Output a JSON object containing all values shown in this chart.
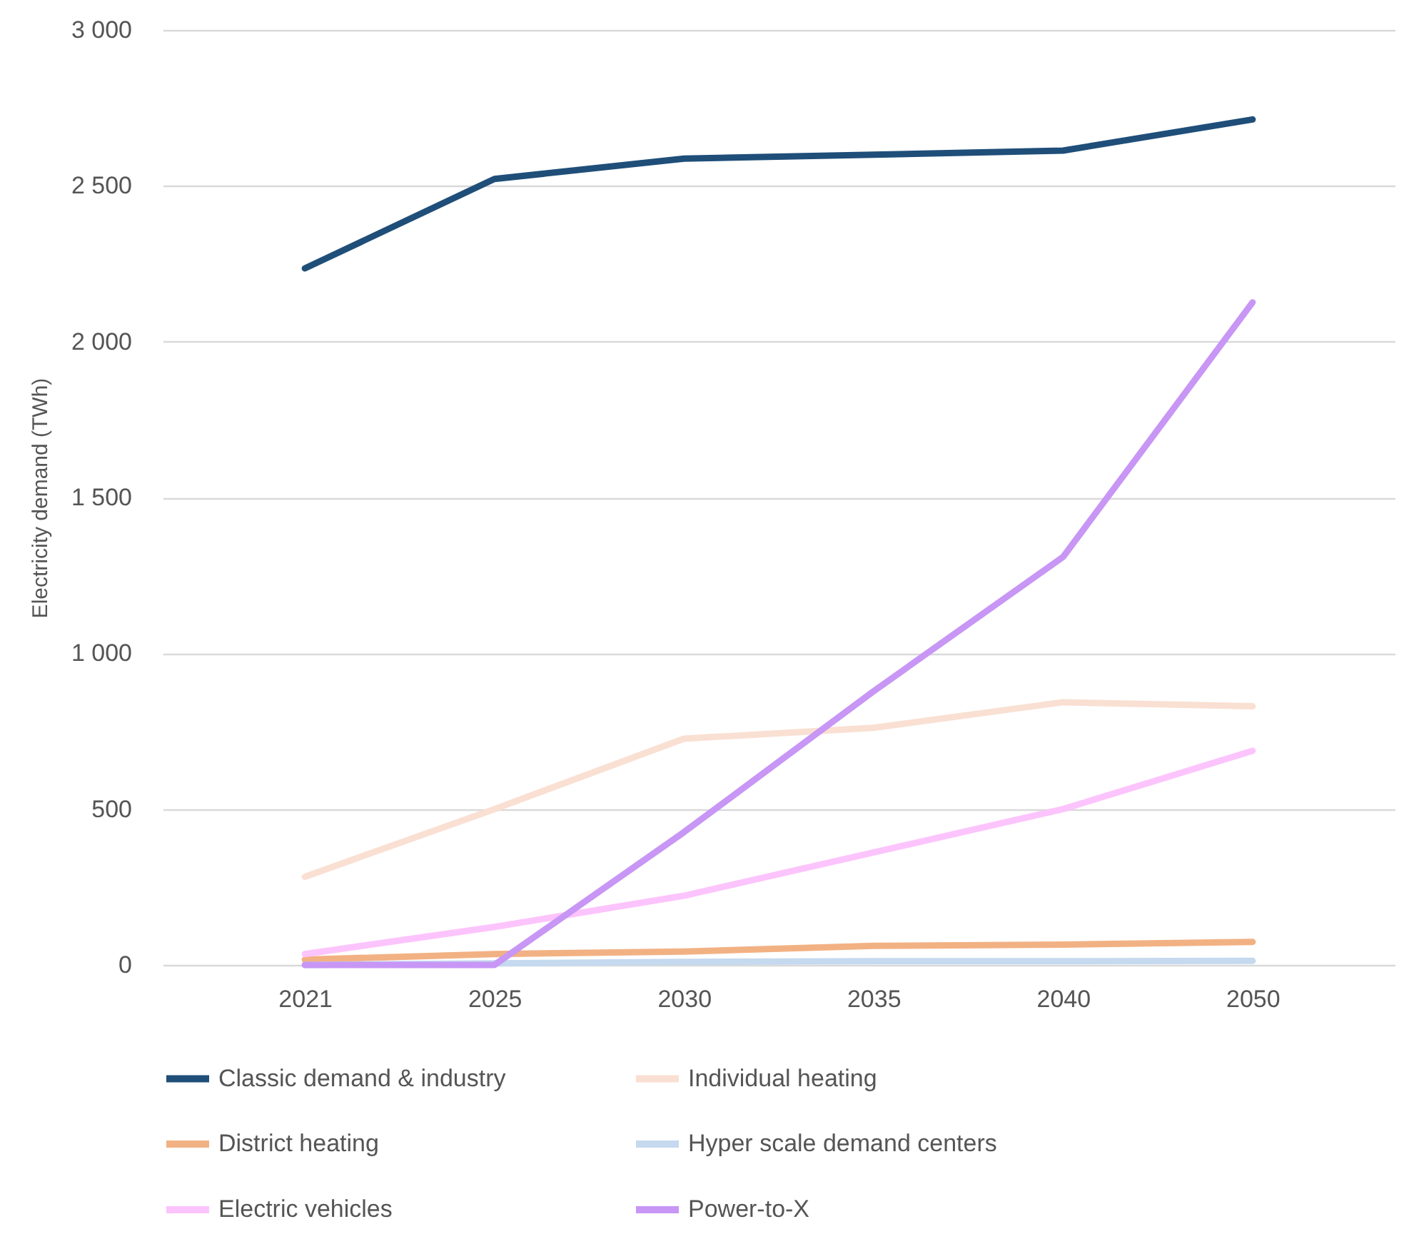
{
  "chart_data": {
    "type": "line",
    "ylabel": "Electricity demand (TWh)",
    "categories": [
      "2021",
      "2025",
      "2030",
      "2035",
      "2040",
      "2050"
    ],
    "series": [
      {
        "name": "Classic demand & industry",
        "color": "#1f4e79",
        "values": [
          2235,
          2522,
          2587,
          2600,
          2613,
          2713
        ]
      },
      {
        "name": "Individual heating",
        "color": "#f9e0d2",
        "values": [
          283,
          500,
          726,
          761,
          843,
          830
        ]
      },
      {
        "name": "District heating",
        "color": "#f2b183",
        "values": [
          17,
          35,
          43,
          61,
          65,
          74
        ]
      },
      {
        "name": "Hyper scale demand centers",
        "color": "#c5d9ef",
        "values": [
          0,
          5,
          10,
          12,
          12,
          13
        ]
      },
      {
        "name": "Electric vehicles",
        "color": "#fcc4fc",
        "values": [
          35,
          122,
          222,
          361,
          500,
          687
        ]
      },
      {
        "name": "Power-to-X",
        "color": "#c896f5",
        "values": [
          0,
          0,
          426,
          878,
          1309,
          2126
        ]
      }
    ],
    "ylim": [
      0,
      3000
    ],
    "yticks": [
      0,
      {
        "value": 500,
        "label": "500"
      },
      {
        "value": 1000,
        "label": "1 000"
      },
      {
        "value": 1500,
        "label": "1 500"
      },
      {
        "value": 2000,
        "label": "2 000"
      },
      {
        "value": 2500,
        "label": "2 500"
      },
      {
        "value": 3000,
        "label": "3 000"
      }
    ],
    "grid": "y",
    "legend": "bottom"
  }
}
